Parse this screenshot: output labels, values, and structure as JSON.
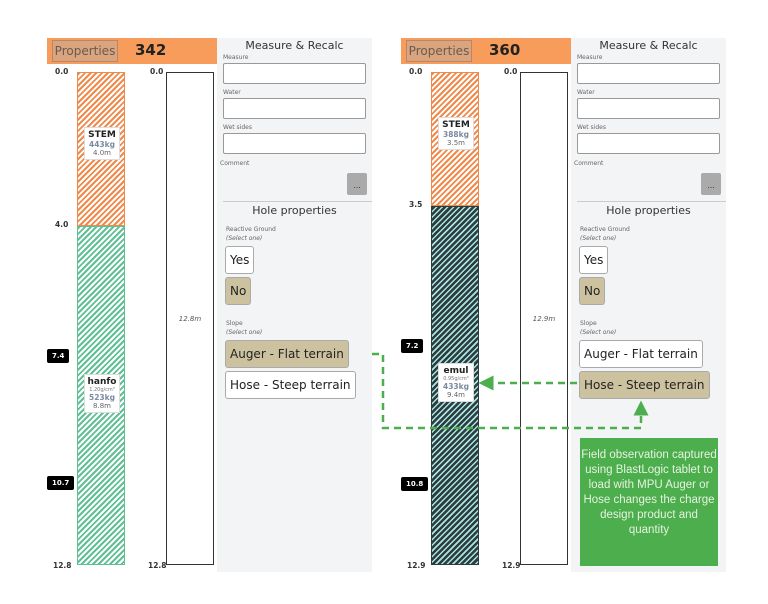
{
  "panels": [
    {
      "properties_label": "Properties",
      "hole_id": "342",
      "measure_title": "Measure & Recalc",
      "fields": {
        "measure": "Measure",
        "water": "Water",
        "wet_sides": "Wet sides",
        "comment": "Comment"
      },
      "more_button": "...",
      "hole_props_title": "Hole properties",
      "reactive": {
        "label": "Reactive Ground",
        "hint": "(Select one)",
        "options": [
          "Yes",
          "No"
        ],
        "selected": "No"
      },
      "slope": {
        "label": "Slope",
        "hint": "(Select one)",
        "options": [
          "Auger - Flat terrain",
          "Hose - Steep terrain"
        ],
        "selected": "Auger - Flat terrain"
      },
      "depth_total": 12.8,
      "top_label": "0.0",
      "bottom_label": "12.8",
      "column2_length": "12.8m",
      "segments": [
        {
          "product": "STEM",
          "type": "stem",
          "from": 0,
          "to": 4.0,
          "to_label": "4.0",
          "mass": "443kg",
          "length": "4.0m",
          "density": ""
        },
        {
          "product": "hanfo",
          "type": "hanfo",
          "from": 4.0,
          "to": 12.8,
          "mass": "523kg",
          "length": "8.8m",
          "density": "1.20g/cm³"
        }
      ],
      "markers": [
        {
          "depth": 7.4,
          "label": "7.4"
        },
        {
          "depth": 10.7,
          "label": "10.7"
        }
      ]
    },
    {
      "properties_label": "Properties",
      "hole_id": "360",
      "measure_title": "Measure & Recalc",
      "fields": {
        "measure": "Measure",
        "water": "Water",
        "wet_sides": "Wet sides",
        "comment": "Comment"
      },
      "more_button": "...",
      "hole_props_title": "Hole properties",
      "reactive": {
        "label": "Reactive Ground",
        "hint": "(Select one)",
        "options": [
          "Yes",
          "No"
        ],
        "selected": "No"
      },
      "slope": {
        "label": "Slope",
        "hint": "(Select one)",
        "options": [
          "Auger - Flat terrain",
          "Hose - Steep terrain"
        ],
        "selected": "Hose - Steep terrain"
      },
      "depth_total": 12.9,
      "top_label": "0.0",
      "bottom_label": "12.9",
      "column2_length": "12.9m",
      "segments": [
        {
          "product": "STEM",
          "type": "stem",
          "from": 0,
          "to": 3.5,
          "to_label": "3.5",
          "mass": "388kg",
          "length": "3.5m",
          "density": ""
        },
        {
          "product": "emul",
          "type": "emul",
          "from": 3.5,
          "to": 12.9,
          "mass": "433kg",
          "length": "9.4m",
          "density": "0.95g/cm³"
        }
      ],
      "markers": [
        {
          "depth": 7.2,
          "label": "7.2"
        },
        {
          "depth": 10.8,
          "label": "10.8"
        }
      ]
    }
  ],
  "annotation": "Field observation captured using BlastLogic tablet to load with MPU Auger or Hose changes the charge design product and quantity",
  "colors": {
    "header": "#f79c5a",
    "stem": "#f08a4b",
    "hanfo": "#5fbf95",
    "emul": "#2d3d3e",
    "selected_option": "#cdc2a0",
    "annotation": "#4cae4c"
  }
}
